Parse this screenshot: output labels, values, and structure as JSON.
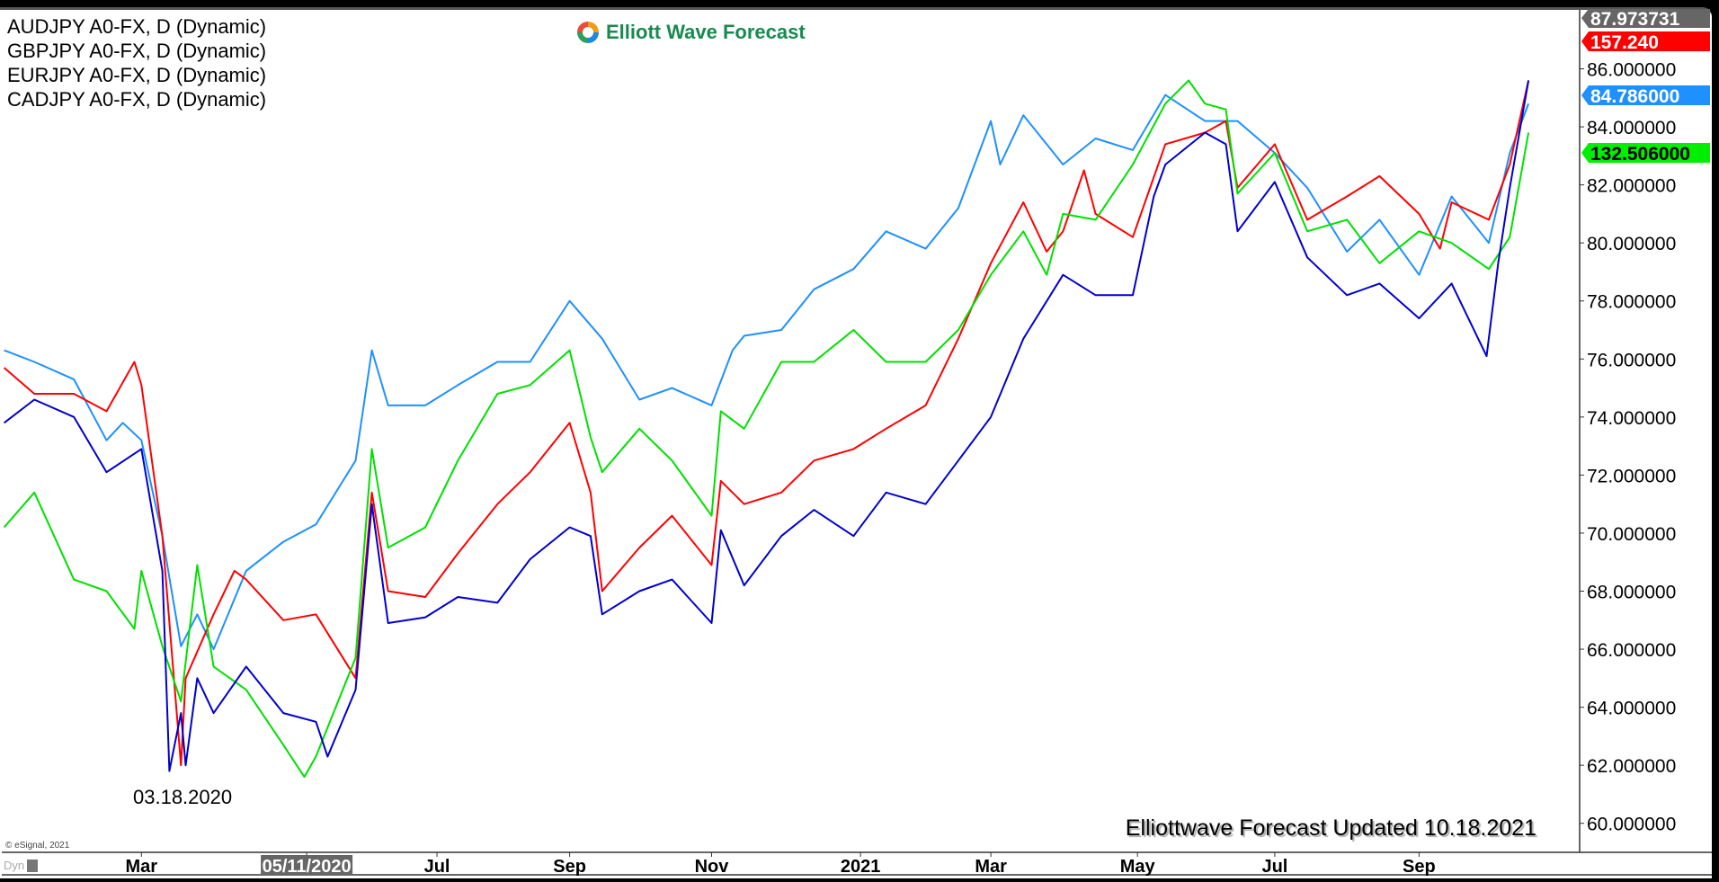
{
  "legend": [
    "AUDJPY A0-FX, D (Dynamic)",
    "GBPJPY A0-FX, D (Dynamic)",
    "EURJPY A0-FX, D (Dynamic)",
    "CADJPY A0-FX, D (Dynamic)"
  ],
  "logo": {
    "text": "Elliott Wave Forecast"
  },
  "copyright": "© eSignal, 2021",
  "dyn_label": "Dyn",
  "chart_data": {
    "type": "line",
    "title": "",
    "xlabel": "",
    "ylabel": "",
    "xlim": [
      "2020-01-01",
      "2021-11-09"
    ],
    "ylim": [
      59.0,
      88.03
    ],
    "grid": false,
    "y_axis_position": "right",
    "y_ticks": [
      60,
      62,
      64,
      66,
      68,
      70,
      72,
      74,
      76,
      78,
      80,
      82,
      84,
      86
    ],
    "y_tick_labels": [
      "60.000000",
      "62.000000",
      "64.000000",
      "66.000000",
      "68.000000",
      "70.000000",
      "72.000000",
      "74.000000",
      "76.000000",
      "78.000000",
      "80.000000",
      "82.000000",
      "84.000000",
      "86.000000"
    ],
    "y_top_label": "87.973731",
    "x_ticks": [
      {
        "date": "2020-03-01",
        "label": "Mar"
      },
      {
        "date": "2020-05-11",
        "label": "05/11/2020",
        "highlight": true
      },
      {
        "date": "2020-07-06",
        "label": "Jul"
      },
      {
        "date": "2020-09-01",
        "label": "Sep"
      },
      {
        "date": "2020-11-01",
        "label": "Nov"
      },
      {
        "date": "2021-01-04",
        "label": "2021"
      },
      {
        "date": "2021-03-01",
        "label": "Mar"
      },
      {
        "date": "2021-05-03",
        "label": "May"
      },
      {
        "date": "2021-07-01",
        "label": "Jul"
      },
      {
        "date": "2021-09-01",
        "label": "Sep"
      }
    ],
    "annotations": [
      {
        "text": "03.18.2020"
      },
      {
        "text": "Elliottwave Forecast Updated 10.18.2021"
      }
    ],
    "series": [
      {
        "name": "AUDJPY A0-FX, D (Dynamic)",
        "color": "#1e90ff",
        "tag": "84.786000",
        "tag_color": "#1e90ff",
        "tag_text_color": "#ffffff",
        "points": [
          [
            "2020-01-02",
            76.3
          ],
          [
            "2020-01-15",
            75.9
          ],
          [
            "2020-02-01",
            75.3
          ],
          [
            "2020-02-15",
            73.2
          ],
          [
            "2020-02-22",
            73.8
          ],
          [
            "2020-03-01",
            73.2
          ],
          [
            "2020-03-10",
            69.9
          ],
          [
            "2020-03-18",
            66.1
          ],
          [
            "2020-03-25",
            67.2
          ],
          [
            "2020-04-01",
            66.0
          ],
          [
            "2020-04-15",
            68.7
          ],
          [
            "2020-05-01",
            69.7
          ],
          [
            "2020-05-15",
            70.3
          ],
          [
            "2020-06-01",
            72.5
          ],
          [
            "2020-06-08",
            76.3
          ],
          [
            "2020-06-15",
            74.4
          ],
          [
            "2020-07-01",
            74.4
          ],
          [
            "2020-07-15",
            75.1
          ],
          [
            "2020-08-01",
            75.9
          ],
          [
            "2020-08-15",
            75.9
          ],
          [
            "2020-09-01",
            78.0
          ],
          [
            "2020-09-15",
            76.7
          ],
          [
            "2020-10-01",
            74.6
          ],
          [
            "2020-10-15",
            75.0
          ],
          [
            "2020-11-01",
            74.4
          ],
          [
            "2020-11-10",
            76.3
          ],
          [
            "2020-11-15",
            76.8
          ],
          [
            "2020-12-01",
            77.0
          ],
          [
            "2020-12-15",
            78.4
          ],
          [
            "2021-01-01",
            79.1
          ],
          [
            "2021-01-15",
            80.4
          ],
          [
            "2021-02-01",
            79.8
          ],
          [
            "2021-02-15",
            81.2
          ],
          [
            "2021-03-01",
            84.2
          ],
          [
            "2021-03-05",
            82.7
          ],
          [
            "2021-03-15",
            84.4
          ],
          [
            "2021-04-01",
            82.7
          ],
          [
            "2021-04-15",
            83.6
          ],
          [
            "2021-05-01",
            83.2
          ],
          [
            "2021-05-15",
            85.1
          ],
          [
            "2021-06-01",
            84.2
          ],
          [
            "2021-06-15",
            84.2
          ],
          [
            "2021-07-01",
            83.1
          ],
          [
            "2021-07-15",
            81.9
          ],
          [
            "2021-08-01",
            79.7
          ],
          [
            "2021-08-15",
            80.8
          ],
          [
            "2021-09-01",
            78.9
          ],
          [
            "2021-09-15",
            81.6
          ],
          [
            "2021-10-01",
            80.0
          ],
          [
            "2021-10-10",
            83.1
          ],
          [
            "2021-10-18",
            84.8
          ]
        ]
      },
      {
        "name": "GBPJPY A0-FX, D (Dynamic)",
        "color": "#ff0000",
        "tag": "157.240",
        "tag_color": "#ff0000",
        "tag_text_color": "#ffffff",
        "points": [
          [
            "2020-01-02",
            75.7
          ],
          [
            "2020-01-15",
            74.8
          ],
          [
            "2020-02-01",
            74.8
          ],
          [
            "2020-02-15",
            74.2
          ],
          [
            "2020-02-27",
            75.9
          ],
          [
            "2020-03-01",
            75.1
          ],
          [
            "2020-03-10",
            69.9
          ],
          [
            "2020-03-18",
            62.0
          ],
          [
            "2020-03-20",
            65.0
          ],
          [
            "2020-04-01",
            67.2
          ],
          [
            "2020-04-10",
            68.7
          ],
          [
            "2020-04-15",
            68.4
          ],
          [
            "2020-05-01",
            67.0
          ],
          [
            "2020-05-15",
            67.2
          ],
          [
            "2020-06-01",
            65.0
          ],
          [
            "2020-06-08",
            71.4
          ],
          [
            "2020-06-15",
            68.0
          ],
          [
            "2020-07-01",
            67.8
          ],
          [
            "2020-07-15",
            69.3
          ],
          [
            "2020-08-01",
            71.0
          ],
          [
            "2020-08-15",
            72.1
          ],
          [
            "2020-09-01",
            73.8
          ],
          [
            "2020-09-10",
            71.4
          ],
          [
            "2020-09-15",
            68.0
          ],
          [
            "2020-10-01",
            69.5
          ],
          [
            "2020-10-15",
            70.6
          ],
          [
            "2020-11-01",
            68.9
          ],
          [
            "2020-11-05",
            71.8
          ],
          [
            "2020-11-15",
            71.0
          ],
          [
            "2020-12-01",
            71.4
          ],
          [
            "2020-12-15",
            72.5
          ],
          [
            "2021-01-01",
            72.9
          ],
          [
            "2021-01-15",
            73.6
          ],
          [
            "2021-02-01",
            74.4
          ],
          [
            "2021-02-15",
            76.7
          ],
          [
            "2021-03-01",
            79.3
          ],
          [
            "2021-03-15",
            81.4
          ],
          [
            "2021-03-25",
            79.7
          ],
          [
            "2021-04-01",
            80.4
          ],
          [
            "2021-04-10",
            82.5
          ],
          [
            "2021-04-15",
            81.0
          ],
          [
            "2021-05-01",
            80.2
          ],
          [
            "2021-05-15",
            83.4
          ],
          [
            "2021-06-01",
            83.8
          ],
          [
            "2021-06-10",
            84.2
          ],
          [
            "2021-06-15",
            81.9
          ],
          [
            "2021-07-01",
            83.4
          ],
          [
            "2021-07-15",
            80.8
          ],
          [
            "2021-08-01",
            81.6
          ],
          [
            "2021-08-15",
            82.3
          ],
          [
            "2021-09-01",
            81.0
          ],
          [
            "2021-09-10",
            79.8
          ],
          [
            "2021-09-15",
            81.4
          ],
          [
            "2021-10-01",
            80.8
          ],
          [
            "2021-10-10",
            82.7
          ],
          [
            "2021-10-18",
            85.6
          ]
        ]
      },
      {
        "name": "EURJPY A0-FX, D (Dynamic)",
        "color": "#00e000",
        "tag": "132.506000",
        "tag_color": "#00ee00",
        "tag_text_color": "#000000",
        "points": [
          [
            "2020-01-02",
            70.2
          ],
          [
            "2020-01-15",
            71.4
          ],
          [
            "2020-02-01",
            68.4
          ],
          [
            "2020-02-15",
            68.0
          ],
          [
            "2020-02-27",
            66.7
          ],
          [
            "2020-03-01",
            68.7
          ],
          [
            "2020-03-10",
            66.1
          ],
          [
            "2020-03-18",
            64.2
          ],
          [
            "2020-03-25",
            68.9
          ],
          [
            "2020-04-01",
            65.4
          ],
          [
            "2020-04-15",
            64.6
          ],
          [
            "2020-05-01",
            62.7
          ],
          [
            "2020-05-10",
            61.6
          ],
          [
            "2020-05-15",
            62.3
          ],
          [
            "2020-06-01",
            65.7
          ],
          [
            "2020-06-08",
            72.9
          ],
          [
            "2020-06-15",
            69.5
          ],
          [
            "2020-07-01",
            70.2
          ],
          [
            "2020-07-15",
            72.5
          ],
          [
            "2020-08-01",
            74.8
          ],
          [
            "2020-08-15",
            75.1
          ],
          [
            "2020-09-01",
            76.3
          ],
          [
            "2020-09-10",
            73.3
          ],
          [
            "2020-09-15",
            72.1
          ],
          [
            "2020-10-01",
            73.6
          ],
          [
            "2020-10-15",
            72.5
          ],
          [
            "2020-11-01",
            70.6
          ],
          [
            "2020-11-05",
            74.2
          ],
          [
            "2020-11-15",
            73.6
          ],
          [
            "2020-12-01",
            75.9
          ],
          [
            "2020-12-15",
            75.9
          ],
          [
            "2021-01-01",
            77.0
          ],
          [
            "2021-01-15",
            75.9
          ],
          [
            "2021-02-01",
            75.9
          ],
          [
            "2021-02-15",
            77.0
          ],
          [
            "2021-03-01",
            78.9
          ],
          [
            "2021-03-15",
            80.4
          ],
          [
            "2021-03-25",
            78.9
          ],
          [
            "2021-04-01",
            81.0
          ],
          [
            "2021-04-15",
            80.8
          ],
          [
            "2021-05-01",
            82.7
          ],
          [
            "2021-05-15",
            84.8
          ],
          [
            "2021-05-25",
            85.6
          ],
          [
            "2021-06-01",
            84.8
          ],
          [
            "2021-06-10",
            84.6
          ],
          [
            "2021-06-15",
            81.7
          ],
          [
            "2021-07-01",
            83.1
          ],
          [
            "2021-07-15",
            80.4
          ],
          [
            "2021-08-01",
            80.8
          ],
          [
            "2021-08-15",
            79.3
          ],
          [
            "2021-09-01",
            80.4
          ],
          [
            "2021-09-15",
            80.0
          ],
          [
            "2021-10-01",
            79.1
          ],
          [
            "2021-10-10",
            80.2
          ],
          [
            "2021-10-18",
            83.8
          ]
        ]
      },
      {
        "name": "CADJPY A0-FX, D (Dynamic)",
        "color": "#0000cd",
        "points": [
          [
            "2020-01-02",
            73.8
          ],
          [
            "2020-01-15",
            74.6
          ],
          [
            "2020-02-01",
            74.0
          ],
          [
            "2020-02-15",
            72.1
          ],
          [
            "2020-03-01",
            72.9
          ],
          [
            "2020-03-10",
            68.7
          ],
          [
            "2020-03-13",
            61.8
          ],
          [
            "2020-03-18",
            63.8
          ],
          [
            "2020-03-20",
            62.0
          ],
          [
            "2020-03-25",
            65.0
          ],
          [
            "2020-04-01",
            63.8
          ],
          [
            "2020-04-15",
            65.4
          ],
          [
            "2020-05-01",
            63.8
          ],
          [
            "2020-05-15",
            63.5
          ],
          [
            "2020-05-20",
            62.3
          ],
          [
            "2020-06-01",
            64.6
          ],
          [
            "2020-06-08",
            71.0
          ],
          [
            "2020-06-15",
            66.9
          ],
          [
            "2020-07-01",
            67.1
          ],
          [
            "2020-07-15",
            67.8
          ],
          [
            "2020-08-01",
            67.6
          ],
          [
            "2020-08-15",
            69.1
          ],
          [
            "2020-09-01",
            70.2
          ],
          [
            "2020-09-10",
            69.9
          ],
          [
            "2020-09-15",
            67.2
          ],
          [
            "2020-10-01",
            68.0
          ],
          [
            "2020-10-15",
            68.4
          ],
          [
            "2020-11-01",
            66.9
          ],
          [
            "2020-11-05",
            70.1
          ],
          [
            "2020-11-15",
            68.2
          ],
          [
            "2020-12-01",
            69.9
          ],
          [
            "2020-12-15",
            70.8
          ],
          [
            "2021-01-01",
            69.9
          ],
          [
            "2021-01-15",
            71.4
          ],
          [
            "2021-02-01",
            71.0
          ],
          [
            "2021-02-15",
            72.5
          ],
          [
            "2021-03-01",
            74.0
          ],
          [
            "2021-03-15",
            76.7
          ],
          [
            "2021-04-01",
            78.9
          ],
          [
            "2021-04-15",
            78.2
          ],
          [
            "2021-05-01",
            78.2
          ],
          [
            "2021-05-10",
            81.6
          ],
          [
            "2021-05-15",
            82.7
          ],
          [
            "2021-06-01",
            83.8
          ],
          [
            "2021-06-10",
            83.4
          ],
          [
            "2021-06-15",
            80.4
          ],
          [
            "2021-07-01",
            82.1
          ],
          [
            "2021-07-15",
            79.5
          ],
          [
            "2021-08-01",
            78.2
          ],
          [
            "2021-08-15",
            78.6
          ],
          [
            "2021-09-01",
            77.4
          ],
          [
            "2021-09-15",
            78.6
          ],
          [
            "2021-09-30",
            76.1
          ],
          [
            "2021-10-05",
            79.3
          ],
          [
            "2021-10-10",
            81.9
          ],
          [
            "2021-10-18",
            85.6
          ]
        ]
      }
    ]
  }
}
